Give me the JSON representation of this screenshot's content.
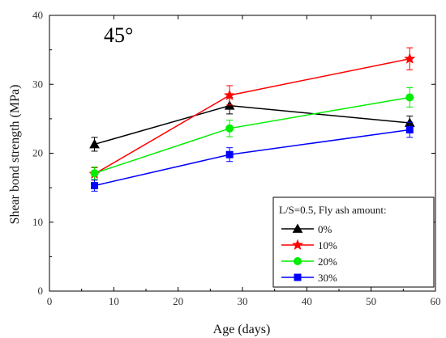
{
  "chart_data": {
    "type": "line",
    "title": "",
    "annotation": "45°",
    "xlabel": "Age (days)",
    "ylabel": "Shear bond strength (MPa)",
    "xlim": [
      0,
      60
    ],
    "ylim": [
      0,
      40
    ],
    "xticks": [
      0,
      10,
      20,
      30,
      40,
      50,
      60
    ],
    "yticks": [
      0,
      10,
      20,
      30,
      40
    ],
    "grid": false,
    "legend_position": "bottom-right",
    "legend_title": "L/S=0.5, Fly ash amount:",
    "x": [
      7,
      28,
      56
    ],
    "series": [
      {
        "name": "0%",
        "color": "#000000",
        "marker": "triangle",
        "values": [
          21.3,
          26.9,
          24.4
        ],
        "errors": [
          1.0,
          1.2,
          1.0
        ]
      },
      {
        "name": "10%",
        "color": "#ff0000",
        "marker": "star",
        "values": [
          17.0,
          28.4,
          33.7
        ],
        "errors": [
          0.9,
          1.4,
          1.6
        ]
      },
      {
        "name": "20%",
        "color": "#00ee00",
        "marker": "circle",
        "values": [
          17.1,
          23.6,
          28.1
        ],
        "errors": [
          0.9,
          1.2,
          1.4
        ]
      },
      {
        "name": "30%",
        "color": "#0000ff",
        "marker": "square",
        "values": [
          15.3,
          19.8,
          23.4
        ],
        "errors": [
          0.8,
          1.0,
          1.1
        ]
      }
    ]
  }
}
